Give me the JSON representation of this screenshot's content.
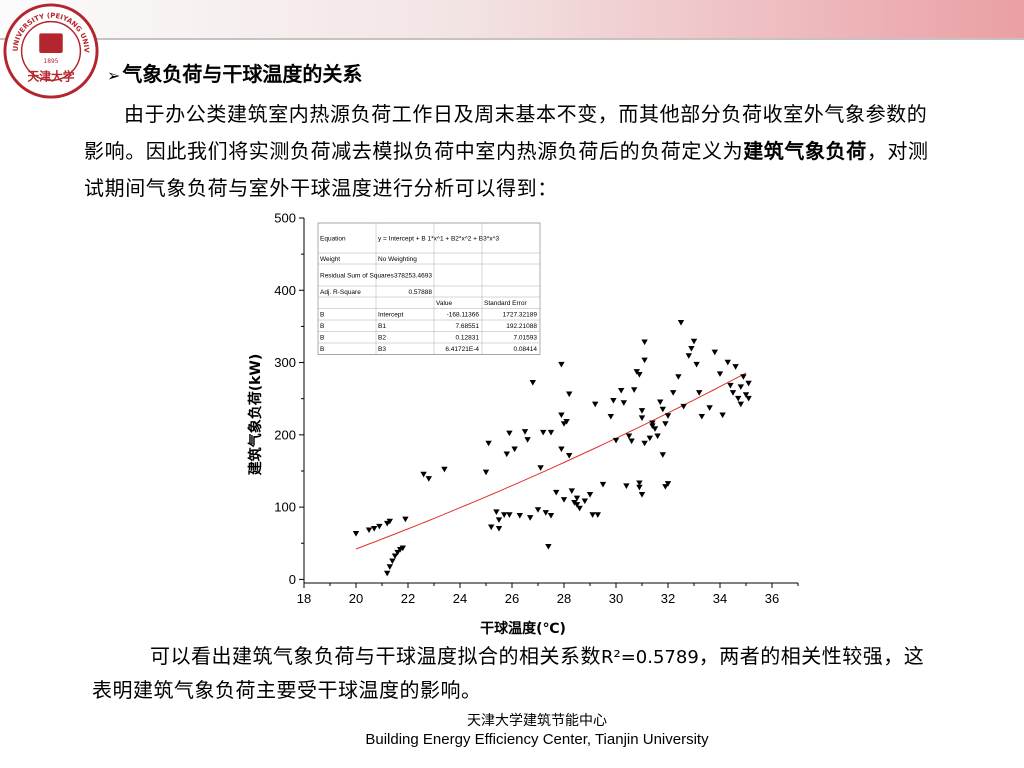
{
  "colors": {
    "banner_accent": "#ea9fa5",
    "logo_red": "#b3262d",
    "fit_line": "#e0322e",
    "marker": "#000000"
  },
  "logo": {
    "top_text": "TIANJIN UNIVERSITY (PEIYANG UNIVERSITY)",
    "year": "1895",
    "bottom_text": "天津大学",
    "icon": "university-seal-icon"
  },
  "slide": {
    "heading_marker": "➢",
    "heading": "气象负荷与干球温度的关系",
    "para_part1": "由于办公类建筑室内热源负荷工作日及周末基本不变，而其他部分负荷收室外气象参数的影响。因此我们将实测负荷减去模拟负荷中室内热源负荷后的负荷定义为",
    "para_bold": "建筑气象负荷",
    "para_part2": "，对测试期间气象负荷与室外干球温度进行分析可以得到：",
    "conclusion_part1": "可以看出建筑气象负荷与干球温度拟合的相关系数",
    "conclusion_r2": "R²=0.5789",
    "conclusion_part2": "，两者的相关性较强，这表明建筑气象负荷主要受干球温度的影响。"
  },
  "footer": {
    "cn": "天津大学建筑节能中心",
    "en": "Building Energy Efficiency Center, Tianjin University"
  },
  "chart_data": {
    "type": "scatter",
    "xlabel": "干球温度(℃)",
    "ylabel": "建筑气象负荷(kW)",
    "xlim": [
      18,
      37
    ],
    "ylim": [
      -5,
      500
    ],
    "xticks": [
      18,
      20,
      22,
      24,
      26,
      28,
      30,
      32,
      34,
      36
    ],
    "yticks": [
      0,
      100,
      200,
      300,
      400,
      500
    ],
    "marker": "down-triangle",
    "points": [
      [
        20.0,
        63
      ],
      [
        20.5,
        68
      ],
      [
        20.7,
        70
      ],
      [
        20.9,
        73
      ],
      [
        21.2,
        77
      ],
      [
        21.3,
        80
      ],
      [
        21.9,
        83
      ],
      [
        21.2,
        8
      ],
      [
        21.3,
        17
      ],
      [
        21.4,
        25
      ],
      [
        21.5,
        32
      ],
      [
        21.6,
        37
      ],
      [
        21.7,
        41
      ],
      [
        21.8,
        43
      ],
      [
        22.6,
        145
      ],
      [
        22.8,
        139
      ],
      [
        23.4,
        152
      ],
      [
        25.0,
        148
      ],
      [
        25.1,
        188
      ],
      [
        25.2,
        72
      ],
      [
        25.4,
        93
      ],
      [
        25.5,
        82
      ],
      [
        25.5,
        70
      ],
      [
        25.7,
        89
      ],
      [
        25.8,
        173
      ],
      [
        25.9,
        202
      ],
      [
        25.9,
        89
      ],
      [
        26.1,
        180
      ],
      [
        26.3,
        88
      ],
      [
        26.5,
        204
      ],
      [
        26.6,
        193
      ],
      [
        26.7,
        85
      ],
      [
        26.8,
        272
      ],
      [
        27.0,
        96
      ],
      [
        27.1,
        154
      ],
      [
        27.2,
        203
      ],
      [
        27.3,
        92
      ],
      [
        27.4,
        45
      ],
      [
        27.5,
        203
      ],
      [
        27.5,
        88
      ],
      [
        27.7,
        120
      ],
      [
        27.9,
        297
      ],
      [
        27.9,
        227
      ],
      [
        27.9,
        180
      ],
      [
        28.0,
        215
      ],
      [
        28.0,
        110
      ],
      [
        28.1,
        218
      ],
      [
        28.2,
        256
      ],
      [
        28.2,
        171
      ],
      [
        28.3,
        122
      ],
      [
        28.4,
        106
      ],
      [
        28.5,
        103
      ],
      [
        28.5,
        112
      ],
      [
        28.6,
        98
      ],
      [
        28.8,
        108
      ],
      [
        29.0,
        117
      ],
      [
        29.1,
        89
      ],
      [
        29.2,
        242
      ],
      [
        29.3,
        89
      ],
      [
        29.5,
        131
      ],
      [
        29.8,
        225
      ],
      [
        29.9,
        247
      ],
      [
        30.0,
        192
      ],
      [
        30.2,
        261
      ],
      [
        30.3,
        244
      ],
      [
        30.4,
        129
      ],
      [
        30.5,
        198
      ],
      [
        30.6,
        191
      ],
      [
        30.7,
        262
      ],
      [
        30.8,
        287
      ],
      [
        30.9,
        283
      ],
      [
        30.9,
        133
      ],
      [
        30.9,
        127
      ],
      [
        31.0,
        117
      ],
      [
        31.0,
        233
      ],
      [
        31.0,
        223
      ],
      [
        31.1,
        328
      ],
      [
        31.1,
        303
      ],
      [
        31.1,
        188
      ],
      [
        31.3,
        195
      ],
      [
        31.4,
        212
      ],
      [
        31.4,
        216
      ],
      [
        31.5,
        208
      ],
      [
        31.6,
        198
      ],
      [
        31.7,
        245
      ],
      [
        31.8,
        235
      ],
      [
        31.8,
        172
      ],
      [
        31.9,
        215
      ],
      [
        32.0,
        226
      ],
      [
        31.9,
        128
      ],
      [
        32.0,
        132
      ],
      [
        32.2,
        258
      ],
      [
        32.4,
        280
      ],
      [
        32.5,
        355
      ],
      [
        32.6,
        239
      ],
      [
        32.8,
        309
      ],
      [
        32.9,
        319
      ],
      [
        33.0,
        329
      ],
      [
        33.1,
        297
      ],
      [
        33.2,
        258
      ],
      [
        33.3,
        225
      ],
      [
        33.6,
        237
      ],
      [
        33.8,
        314
      ],
      [
        34.0,
        284
      ],
      [
        34.1,
        227
      ],
      [
        34.3,
        300
      ],
      [
        34.4,
        268
      ],
      [
        34.5,
        258
      ],
      [
        34.6,
        294
      ],
      [
        34.7,
        250
      ],
      [
        34.8,
        266
      ],
      [
        34.8,
        242
      ],
      [
        34.9,
        280
      ],
      [
        35.0,
        255
      ],
      [
        35.1,
        271
      ],
      [
        35.1,
        250
      ]
    ],
    "fit": {
      "model": "y = Intercept + B1*x^1 + B2*x^2 + B3*x^3",
      "intercept": -168.11366,
      "B1": 7.68551,
      "B2": 0.12831,
      "B3": 0.000641721,
      "x_range": [
        20,
        35
      ]
    },
    "fit_table": {
      "header_rows": [
        [
          "Equation",
          "y = Intercept + B 1*x^1 + B2*x^2 + B3*x^3"
        ],
        [
          "Weight",
          "No Weighting"
        ],
        [
          "Residual Sum of Squares",
          "378253.4693"
        ],
        [
          "Adj. R-Square",
          "0.57888"
        ]
      ],
      "columns": [
        "",
        "",
        "Value",
        "Standard Error"
      ],
      "rows": [
        [
          "B",
          "Intercept",
          "-168.11366",
          "1727.32189"
        ],
        [
          "B",
          "B1",
          "7.68551",
          "192.21088"
        ],
        [
          "B",
          "B2",
          "0.12831",
          "7.01593"
        ],
        [
          "B",
          "B3",
          "6.41721E-4",
          "0.08414"
        ]
      ]
    }
  }
}
